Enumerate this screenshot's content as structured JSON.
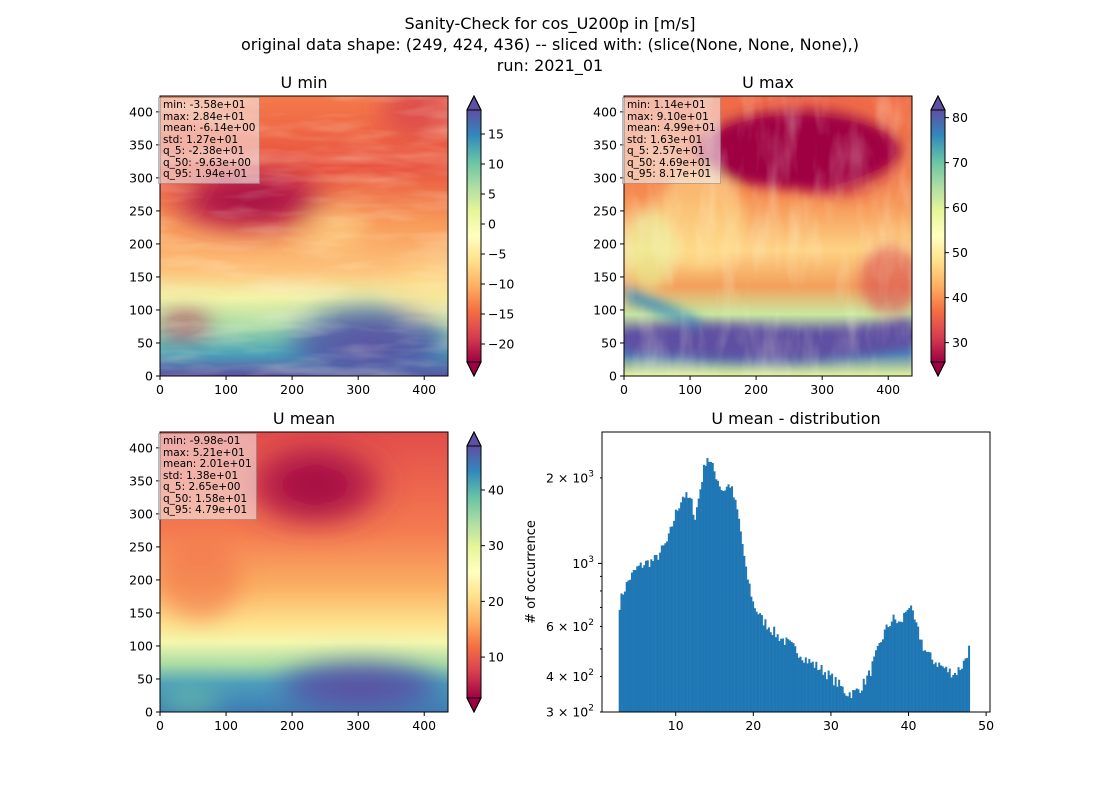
{
  "figure": {
    "title_lines": [
      "Sanity-Check for cos_U200p in [m/s]",
      "original data shape: (249, 424, 436) -- sliced with: (slice(None, None, None),)",
      "run: 2021_01"
    ]
  },
  "chart_data": [
    {
      "type": "heatmap",
      "title": "U min",
      "xlim": [
        0,
        436
      ],
      "ylim": [
        0,
        424
      ],
      "xticks": [
        0,
        100,
        200,
        300,
        400
      ],
      "yticks": [
        0,
        50,
        100,
        150,
        200,
        250,
        300,
        350,
        400
      ],
      "colormap": "Spectral",
      "colorbar": {
        "range": [
          -23,
          19
        ],
        "ticks": [
          15,
          10,
          5,
          0,
          -5,
          -10,
          -15,
          -20
        ],
        "extend": "both"
      },
      "stats": [
        "min: -3.58e+01",
        "max: 2.84e+01",
        "mean: -6.14e+00",
        "std: 1.27e+01",
        "q_5: -2.38e+01",
        "q_50: -9.63e+00",
        "q_95: 1.94e+01"
      ]
    },
    {
      "type": "heatmap",
      "title": "U max",
      "xlim": [
        0,
        436
      ],
      "ylim": [
        0,
        424
      ],
      "xticks": [
        0,
        100,
        200,
        300,
        400
      ],
      "yticks": [
        0,
        50,
        100,
        150,
        200,
        250,
        300,
        350,
        400
      ],
      "colormap": "Spectral",
      "colorbar": {
        "range": [
          25.7,
          81.7
        ],
        "ticks": [
          80,
          70,
          60,
          50,
          40,
          30
        ],
        "extend": "both"
      },
      "stats": [
        "min: 1.14e+01",
        "max: 9.10e+01",
        "mean: 4.99e+01",
        "std: 1.63e+01",
        "q_5: 2.57e+01",
        "q_50: 4.69e+01",
        "q_95: 8.17e+01"
      ]
    },
    {
      "type": "heatmap",
      "title": "U mean",
      "xlim": [
        0,
        436
      ],
      "ylim": [
        0,
        424
      ],
      "xticks": [
        0,
        100,
        200,
        300,
        400
      ],
      "yticks": [
        0,
        50,
        100,
        150,
        200,
        250,
        300,
        350,
        400
      ],
      "colormap": "Spectral",
      "colorbar": {
        "range": [
          2.65,
          47.9
        ],
        "ticks": [
          40,
          30,
          20,
          10
        ],
        "extend": "both"
      },
      "stats": [
        "min: -9.98e-01",
        "max: 5.21e+01",
        "mean: 2.01e+01",
        "std: 1.38e+01",
        "q_5: 2.65e+00",
        "q_50: 1.58e+01",
        "q_95: 4.79e+01"
      ]
    },
    {
      "type": "bar",
      "title": "U mean - distribution",
      "ylabel": "# of occurrence",
      "xlabel": "",
      "yscale": "log",
      "xlim": [
        0.5,
        50.5
      ],
      "ylim": [
        300,
        2900
      ],
      "xticks": [
        10,
        20,
        30,
        40,
        50
      ],
      "color": "#1f77b4",
      "yticklabels": [
        {
          "value": 400,
          "label": "4 × 10",
          "exp": "2"
        },
        {
          "value": 600,
          "label": "6 × 10",
          "exp": "2"
        },
        {
          "value": 1000,
          "label": "10",
          "exp": "3"
        },
        {
          "value": 2000,
          "label": "2 × 10",
          "exp": "3"
        },
        {
          "value": 300,
          "label": "3 × 10",
          "exp": "2"
        }
      ],
      "histogram": {
        "x_start": 2.65,
        "x_end": 47.9,
        "bin_count": 200,
        "profile_x": [
          2.65,
          3.2,
          4,
          5,
          6,
          7,
          7.5,
          9,
          10,
          11,
          12,
          12.5,
          13,
          14,
          15,
          16,
          17,
          18,
          19,
          20,
          21,
          23,
          25,
          27,
          29,
          31,
          32,
          33,
          34,
          35,
          36,
          37,
          38,
          39,
          40,
          41,
          42,
          43,
          44,
          45,
          46,
          47,
          47.9
        ],
        "profile_y": [
          700,
          790,
          880,
          960,
          1000,
          1020,
          1040,
          1200,
          1500,
          1750,
          1650,
          1450,
          1720,
          2400,
          2100,
          1800,
          1900,
          1500,
          950,
          720,
          640,
          560,
          510,
          455,
          420,
          375,
          350,
          350,
          370,
          410,
          490,
          580,
          640,
          610,
          720,
          600,
          500,
          460,
          440,
          420,
          410,
          440,
          510
        ]
      }
    }
  ]
}
